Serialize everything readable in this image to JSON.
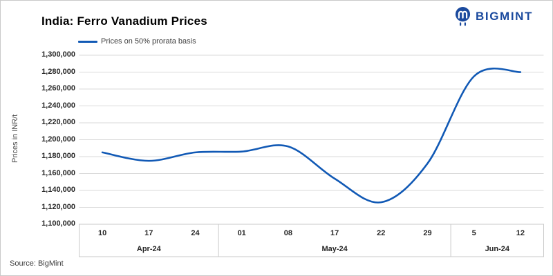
{
  "header": {
    "title": "India: Ferro Vanadium Prices",
    "logo_text": "BIGMINT"
  },
  "legend": {
    "label": "Prices on 50% prorata basis"
  },
  "source_note": "Source: BigMint",
  "colors": {
    "line": "#1159b5",
    "logo": "#1b4a9e",
    "grid": "#d9d9d9",
    "axis_box": "#c9c9c9",
    "label_text": "#262626"
  },
  "chart_data": {
    "type": "line",
    "smooth": true,
    "title": "India: Ferro Vanadium Prices",
    "series_name": "Prices on 50% prorata basis",
    "ylabel": "Prices in INR/t",
    "xlabel": "",
    "ylim": [
      1100000,
      1300000
    ],
    "y_tick_step": 20000,
    "y_tick_labels": [
      "1,300,000",
      "1,280,000",
      "1,260,000",
      "1,240,000",
      "1,220,000",
      "1,200,000",
      "1,180,000",
      "1,160,000",
      "1,140,000",
      "1,120,000",
      "1,100,000"
    ],
    "grid": "horizontal",
    "legend_position": "top-left",
    "groups": [
      {
        "label": "Apr-24",
        "ticks": [
          "10",
          "17",
          "24"
        ]
      },
      {
        "label": "May-24",
        "ticks": [
          "01",
          "08",
          "17",
          "22",
          "29"
        ]
      },
      {
        "label": "Jun-24",
        "ticks": [
          "5",
          "12"
        ]
      }
    ],
    "categories": [
      "Apr-24 10",
      "Apr-24 17",
      "Apr-24 24",
      "May-24 01",
      "May-24 08",
      "May-24 17",
      "May-24 22",
      "May-24 29",
      "Jun-24 5",
      "Jun-24 12"
    ],
    "values": [
      1185000,
      1175000,
      1185000,
      1186000,
      1192000,
      1154000,
      1126000,
      1172000,
      1275000,
      1280000
    ]
  }
}
